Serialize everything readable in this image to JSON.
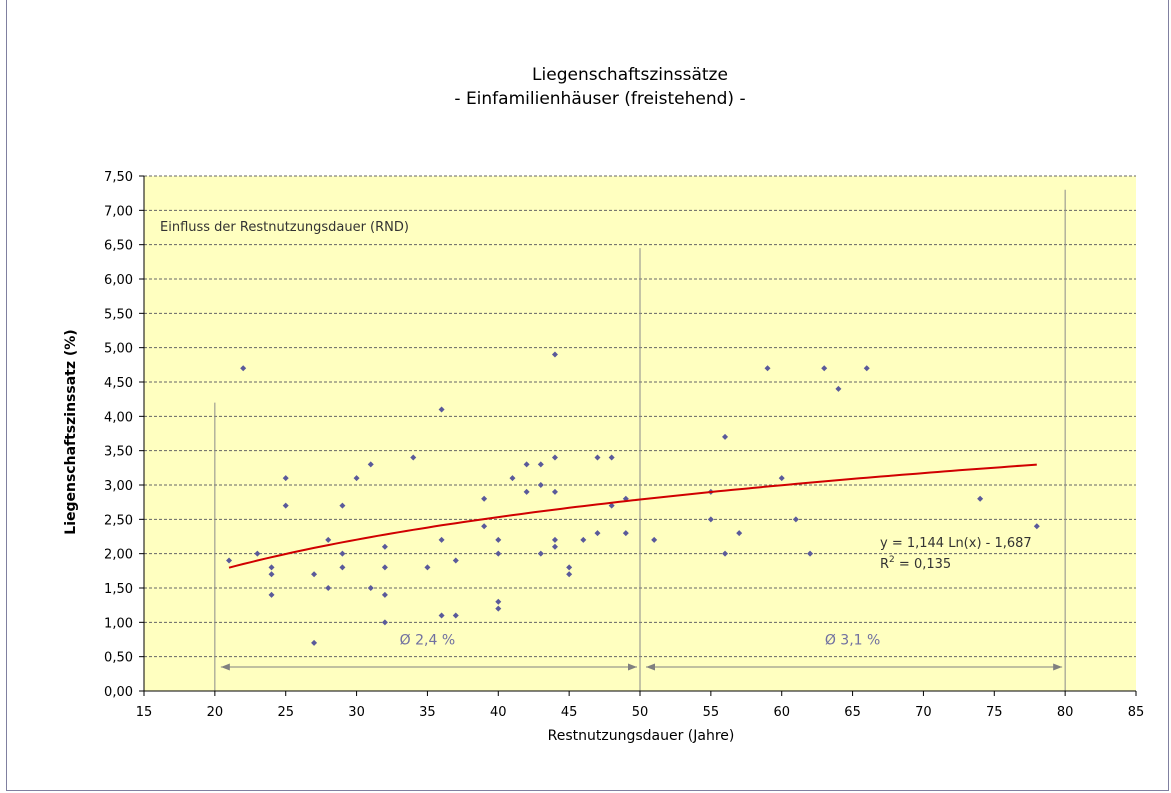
{
  "chart_data": {
    "type": "scatter",
    "title": "Liegenschaftszinssätze",
    "subtitle": "- Einfamilienhäuser (freistehend) -",
    "xlabel": "Restnutzungsdauer (Jahre)",
    "ylabel": "Liegenschaftszinssatz (%)",
    "xlim": [
      15,
      85
    ],
    "ylim": [
      0,
      7.5
    ],
    "x_ticks": [
      "15",
      "20",
      "25",
      "30",
      "35",
      "40",
      "45",
      "50",
      "55",
      "60",
      "65",
      "70",
      "75",
      "80",
      "85"
    ],
    "y_ticks": [
      "0,00",
      "0,50",
      "1,00",
      "1,50",
      "2,00",
      "2,50",
      "3,00",
      "3,50",
      "4,00",
      "4,50",
      "5,00",
      "5,50",
      "6,00",
      "6,50",
      "7,00",
      "7,50"
    ],
    "grid": "horizontal dashed",
    "plot_background": "#FFFFC0",
    "marker_color": "#5A5A9A",
    "trend_color": "#D00000",
    "points": [
      [
        21,
        1.9
      ],
      [
        22,
        4.7
      ],
      [
        23,
        2.0
      ],
      [
        24,
        1.8
      ],
      [
        24,
        1.7
      ],
      [
        24,
        1.4
      ],
      [
        25,
        3.1
      ],
      [
        25,
        2.7
      ],
      [
        27,
        1.7
      ],
      [
        27,
        0.7
      ],
      [
        28,
        2.2
      ],
      [
        28,
        1.5
      ],
      [
        29,
        2.7
      ],
      [
        29,
        2.0
      ],
      [
        29,
        1.8
      ],
      [
        30,
        3.1
      ],
      [
        31,
        3.3
      ],
      [
        31,
        1.5
      ],
      [
        32,
        2.1
      ],
      [
        32,
        1.8
      ],
      [
        32,
        1.4
      ],
      [
        32,
        1.0
      ],
      [
        34,
        3.4
      ],
      [
        35,
        1.8
      ],
      [
        36,
        4.1
      ],
      [
        36,
        2.2
      ],
      [
        36,
        1.1
      ],
      [
        37,
        1.9
      ],
      [
        37,
        1.1
      ],
      [
        39,
        2.8
      ],
      [
        39,
        2.4
      ],
      [
        40,
        2.2
      ],
      [
        40,
        2.0
      ],
      [
        40,
        1.3
      ],
      [
        40,
        1.2
      ],
      [
        41,
        3.1
      ],
      [
        42,
        3.3
      ],
      [
        42,
        2.9
      ],
      [
        43,
        3.3
      ],
      [
        43,
        3.0
      ],
      [
        43,
        2.0
      ],
      [
        44,
        4.9
      ],
      [
        44,
        3.4
      ],
      [
        44,
        2.9
      ],
      [
        44,
        2.2
      ],
      [
        44,
        2.1
      ],
      [
        45,
        1.8
      ],
      [
        45,
        1.7
      ],
      [
        46,
        2.2
      ],
      [
        47,
        3.4
      ],
      [
        47,
        2.3
      ],
      [
        48,
        3.4
      ],
      [
        48,
        2.7
      ],
      [
        49,
        2.8
      ],
      [
        49,
        2.3
      ],
      [
        51,
        2.2
      ],
      [
        55,
        2.9
      ],
      [
        55,
        2.5
      ],
      [
        56,
        3.7
      ],
      [
        56,
        2.0
      ],
      [
        57,
        2.3
      ],
      [
        59,
        4.7
      ],
      [
        60,
        3.1
      ],
      [
        61,
        2.5
      ],
      [
        62,
        2.0
      ],
      [
        63,
        4.7
      ],
      [
        64,
        4.4
      ],
      [
        66,
        4.7
      ],
      [
        74,
        2.8
      ],
      [
        78,
        2.4
      ]
    ],
    "trendline": {
      "type": "logarithmic",
      "a": 1.144,
      "b": -1.687,
      "x_range": [
        21,
        78
      ],
      "equation": "y = 1,144 Ln(x) - 1,687",
      "r2_label": "R",
      "r2_sup": "2",
      "r2_value": " = 0,135"
    },
    "annotation": "Einfluss der Restnutzungsdauer (RND)",
    "dividers": [
      20,
      50,
      80
    ],
    "ranges": [
      {
        "from": 20,
        "to": 50,
        "label": "Ø 2,4 %"
      },
      {
        "from": 50,
        "to": 80,
        "label": "Ø 3,1 %"
      }
    ]
  }
}
